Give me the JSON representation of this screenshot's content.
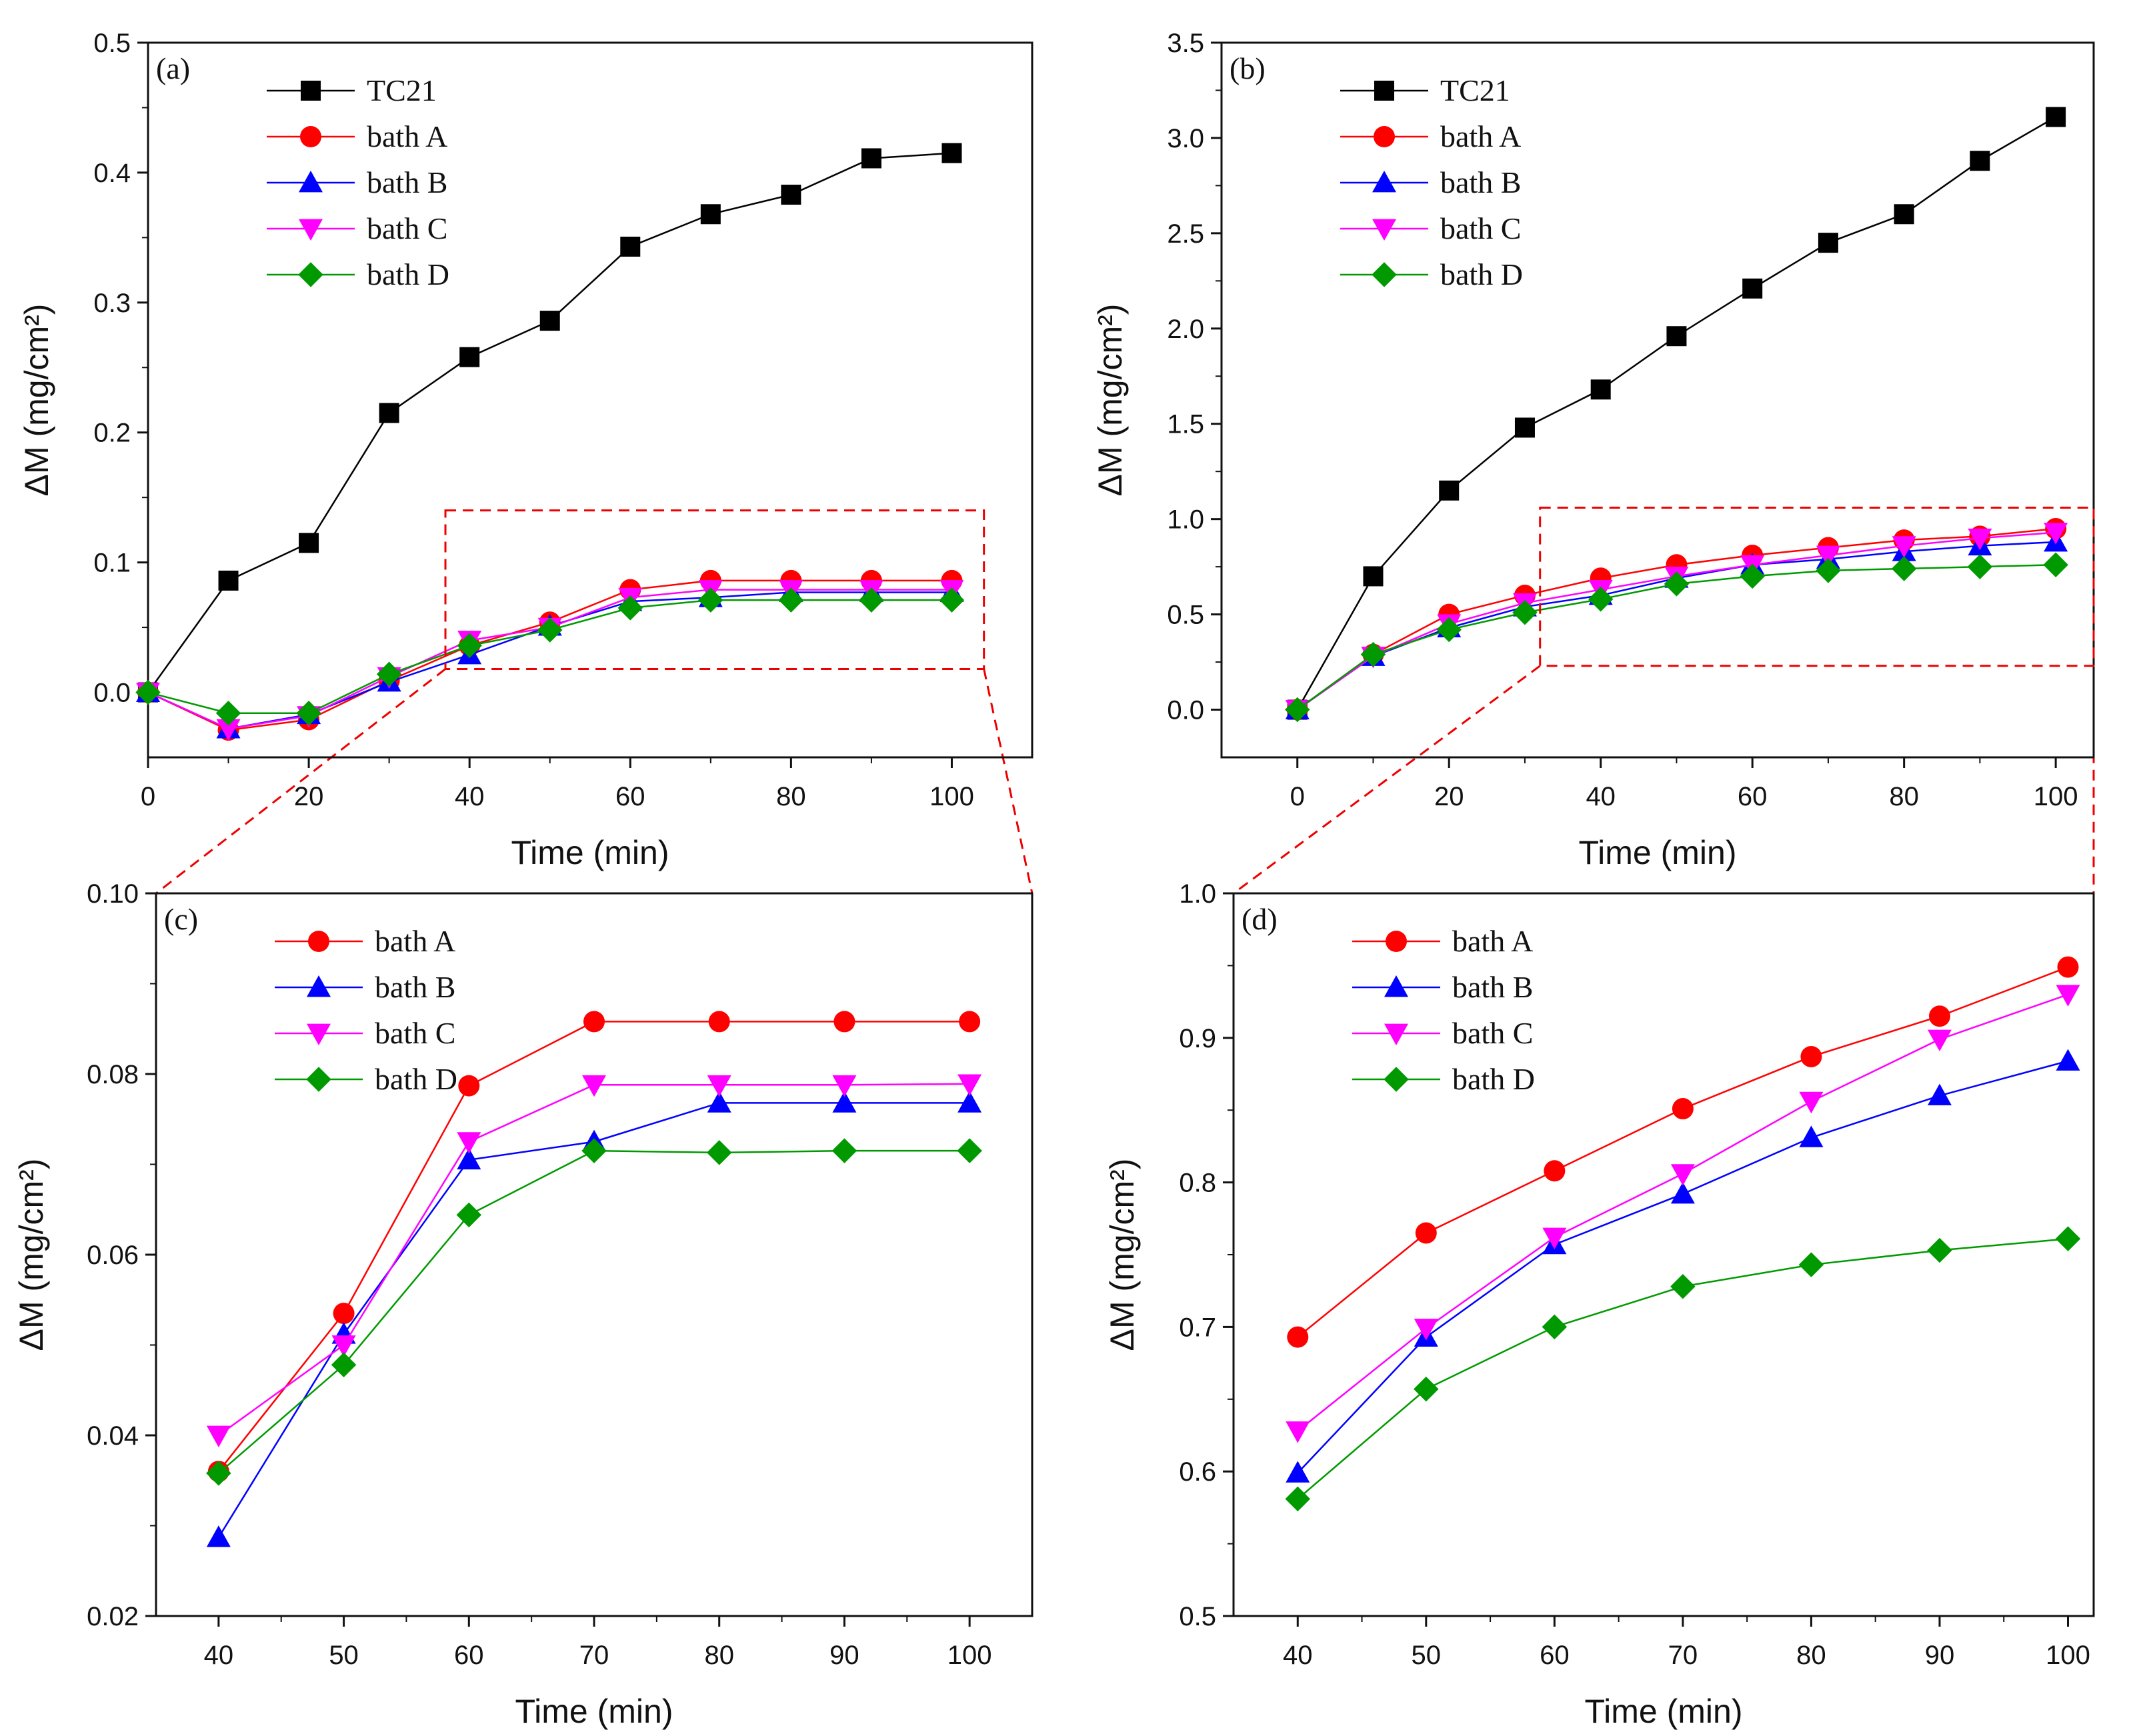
{
  "figure": {
    "description_free": true
  },
  "chart_data": [
    {
      "id": "a",
      "type": "line",
      "panel_label": "(a)",
      "xlabel": "Time (min)",
      "ylabel": "ΔM (mg/cm²)",
      "xlim": [
        0,
        110
      ],
      "ylim": [
        -0.05,
        0.5
      ],
      "xticks": [
        "0",
        "20",
        "40",
        "60",
        "80",
        "100"
      ],
      "xtick_values": [
        0,
        20,
        40,
        60,
        80,
        100
      ],
      "yticks": [
        "0.0",
        "0.1",
        "0.2",
        "0.3",
        "0.4",
        "0.5"
      ],
      "ytick_values": [
        0,
        0.1,
        0.2,
        0.3,
        0.4,
        0.5
      ],
      "zoom_box": {
        "x": [
          37,
          104
        ],
        "y": [
          0.018,
          0.14
        ]
      },
      "series": [
        {
          "name": "TC21",
          "color": "#000000",
          "marker": "square",
          "x": [
            0,
            10,
            20,
            30,
            40,
            50,
            60,
            70,
            80,
            90,
            100
          ],
          "y": [
            0,
            0.086,
            0.115,
            0.215,
            0.258,
            0.286,
            0.343,
            0.368,
            0.383,
            0.411,
            0.415
          ]
        },
        {
          "name": "bath A",
          "color": "#ff0000",
          "marker": "circle",
          "x": [
            0,
            10,
            20,
            30,
            40,
            50,
            60,
            70,
            80,
            90,
            100
          ],
          "y": [
            0,
            -0.029,
            -0.021,
            0.009,
            0.036,
            0.054,
            0.079,
            0.086,
            0.086,
            0.086,
            0.086
          ]
        },
        {
          "name": "bath B",
          "color": "#0000ff",
          "marker": "triangle-up",
          "x": [
            0,
            10,
            20,
            30,
            40,
            50,
            60,
            70,
            80,
            90,
            100
          ],
          "y": [
            0,
            -0.028,
            -0.017,
            0.008,
            0.029,
            0.051,
            0.07,
            0.073,
            0.077,
            0.077,
            0.077
          ]
        },
        {
          "name": "bath C",
          "color": "#ff00ff",
          "marker": "triangle-down",
          "x": [
            0,
            10,
            20,
            30,
            40,
            50,
            60,
            70,
            80,
            90,
            100
          ],
          "y": [
            0,
            -0.028,
            -0.018,
            0.012,
            0.04,
            0.05,
            0.073,
            0.079,
            0.079,
            0.079,
            0.079
          ]
        },
        {
          "name": "bath D",
          "color": "#009900",
          "marker": "diamond",
          "x": [
            0,
            10,
            20,
            30,
            40,
            50,
            60,
            70,
            80,
            90,
            100
          ],
          "y": [
            0,
            -0.016,
            -0.016,
            0.014,
            0.036,
            0.048,
            0.065,
            0.071,
            0.071,
            0.071,
            0.071
          ]
        }
      ]
    },
    {
      "id": "b",
      "type": "line",
      "panel_label": "(b)",
      "xlabel": "Time (min)",
      "ylabel": "ΔM (mg/cm²)",
      "xlim": [
        -10,
        105
      ],
      "ylim": [
        -0.25,
        3.5
      ],
      "xticks": [
        "0",
        "20",
        "40",
        "60",
        "80",
        "100"
      ],
      "xtick_values": [
        0,
        20,
        40,
        60,
        80,
        100
      ],
      "yticks": [
        "0.0",
        "0.5",
        "1.0",
        "1.5",
        "2.0",
        "2.5",
        "3.0",
        "3.5"
      ],
      "ytick_values": [
        0,
        0.5,
        1.0,
        1.5,
        2.0,
        2.5,
        3.0,
        3.5
      ],
      "zoom_box": {
        "x": [
          32,
          105
        ],
        "y": [
          0.23,
          1.06
        ]
      },
      "series": [
        {
          "name": "TC21",
          "color": "#000000",
          "marker": "square",
          "x": [
            0,
            10,
            20,
            30,
            40,
            50,
            60,
            70,
            80,
            90,
            100
          ],
          "y": [
            0,
            0.7,
            1.15,
            1.48,
            1.68,
            1.96,
            2.21,
            2.45,
            2.6,
            2.88,
            3.11
          ]
        },
        {
          "name": "bath A",
          "color": "#ff0000",
          "marker": "circle",
          "x": [
            0,
            10,
            20,
            30,
            40,
            50,
            60,
            70,
            80,
            90,
            100
          ],
          "y": [
            0,
            0.29,
            0.5,
            0.6,
            0.69,
            0.76,
            0.81,
            0.85,
            0.89,
            0.91,
            0.95
          ]
        },
        {
          "name": "bath B",
          "color": "#0000ff",
          "marker": "triangle-up",
          "x": [
            0,
            10,
            20,
            30,
            40,
            50,
            60,
            70,
            80,
            90,
            100
          ],
          "y": [
            0,
            0.28,
            0.43,
            0.54,
            0.6,
            0.69,
            0.76,
            0.79,
            0.83,
            0.86,
            0.88
          ]
        },
        {
          "name": "bath C",
          "color": "#ff00ff",
          "marker": "triangle-down",
          "x": [
            0,
            10,
            20,
            30,
            40,
            50,
            60,
            70,
            80,
            90,
            100
          ],
          "y": [
            0,
            0.28,
            0.45,
            0.56,
            0.63,
            0.7,
            0.76,
            0.81,
            0.86,
            0.9,
            0.93
          ]
        },
        {
          "name": "bath D",
          "color": "#009900",
          "marker": "diamond",
          "x": [
            0,
            10,
            20,
            30,
            40,
            50,
            60,
            70,
            80,
            90,
            100
          ],
          "y": [
            0,
            0.29,
            0.42,
            0.51,
            0.58,
            0.66,
            0.7,
            0.73,
            0.74,
            0.75,
            0.76
          ]
        }
      ]
    },
    {
      "id": "c",
      "type": "line",
      "panel_label": "(c)",
      "xlabel": "Time (min)",
      "ylabel": "ΔM (mg/cm²)",
      "xlim": [
        35,
        105
      ],
      "ylim": [
        0.02,
        0.1
      ],
      "xticks": [
        "40",
        "50",
        "60",
        "70",
        "80",
        "90",
        "100"
      ],
      "xtick_values": [
        40,
        50,
        60,
        70,
        80,
        90,
        100
      ],
      "yticks": [
        "0.02",
        "0.04",
        "0.06",
        "0.08",
        "0.10"
      ],
      "ytick_values": [
        0.02,
        0.04,
        0.06,
        0.08,
        0.1
      ],
      "series": [
        {
          "name": "bath A",
          "color": "#ff0000",
          "marker": "circle",
          "x": [
            40,
            50,
            60,
            70,
            80,
            90,
            100
          ],
          "y": [
            0.036,
            0.0535,
            0.0787,
            0.0858,
            0.0858,
            0.0858,
            0.0858
          ]
        },
        {
          "name": "bath B",
          "color": "#0000ff",
          "marker": "triangle-up",
          "x": [
            40,
            50,
            60,
            70,
            80,
            90,
            100
          ],
          "y": [
            0.0287,
            0.0512,
            0.0705,
            0.0725,
            0.0768,
            0.0768,
            0.0768
          ]
        },
        {
          "name": "bath C",
          "color": "#ff00ff",
          "marker": "triangle-down",
          "x": [
            40,
            50,
            60,
            70,
            80,
            90,
            100
          ],
          "y": [
            0.04,
            0.05,
            0.0725,
            0.0788,
            0.0788,
            0.0788,
            0.0789
          ]
        },
        {
          "name": "bath D",
          "color": "#009900",
          "marker": "diamond",
          "x": [
            40,
            50,
            60,
            70,
            80,
            90,
            100
          ],
          "y": [
            0.0358,
            0.0478,
            0.0644,
            0.0715,
            0.0713,
            0.0715,
            0.0715
          ]
        }
      ]
    },
    {
      "id": "d",
      "type": "line",
      "panel_label": "(d)",
      "xlabel": "Time (min)",
      "ylabel": "ΔM (mg/cm²)",
      "xlim": [
        35,
        102
      ],
      "ylim": [
        0.5,
        1.0
      ],
      "xticks": [
        "40",
        "50",
        "60",
        "70",
        "80",
        "90",
        "100"
      ],
      "xtick_values": [
        40,
        50,
        60,
        70,
        80,
        90,
        100
      ],
      "yticks": [
        "0.5",
        "0.6",
        "0.7",
        "0.8",
        "0.9",
        "1.0"
      ],
      "ytick_values": [
        0.5,
        0.6,
        0.7,
        0.8,
        0.9,
        1.0
      ],
      "series": [
        {
          "name": "bath A",
          "color": "#ff0000",
          "marker": "circle",
          "x": [
            40,
            50,
            60,
            70,
            80,
            90,
            100
          ],
          "y": [
            0.693,
            0.765,
            0.808,
            0.851,
            0.887,
            0.915,
            0.949
          ]
        },
        {
          "name": "bath B",
          "color": "#0000ff",
          "marker": "triangle-up",
          "x": [
            40,
            50,
            60,
            70,
            80,
            90,
            100
          ],
          "y": [
            0.599,
            0.693,
            0.757,
            0.792,
            0.831,
            0.86,
            0.884
          ]
        },
        {
          "name": "bath C",
          "color": "#ff00ff",
          "marker": "triangle-down",
          "x": [
            40,
            50,
            60,
            70,
            80,
            90,
            100
          ],
          "y": [
            0.628,
            0.699,
            0.762,
            0.806,
            0.856,
            0.899,
            0.93
          ]
        },
        {
          "name": "bath D",
          "color": "#009900",
          "marker": "diamond",
          "x": [
            40,
            50,
            60,
            70,
            80,
            90,
            100
          ],
          "y": [
            0.581,
            0.657,
            0.7,
            0.728,
            0.743,
            0.753,
            0.761
          ]
        }
      ]
    }
  ]
}
